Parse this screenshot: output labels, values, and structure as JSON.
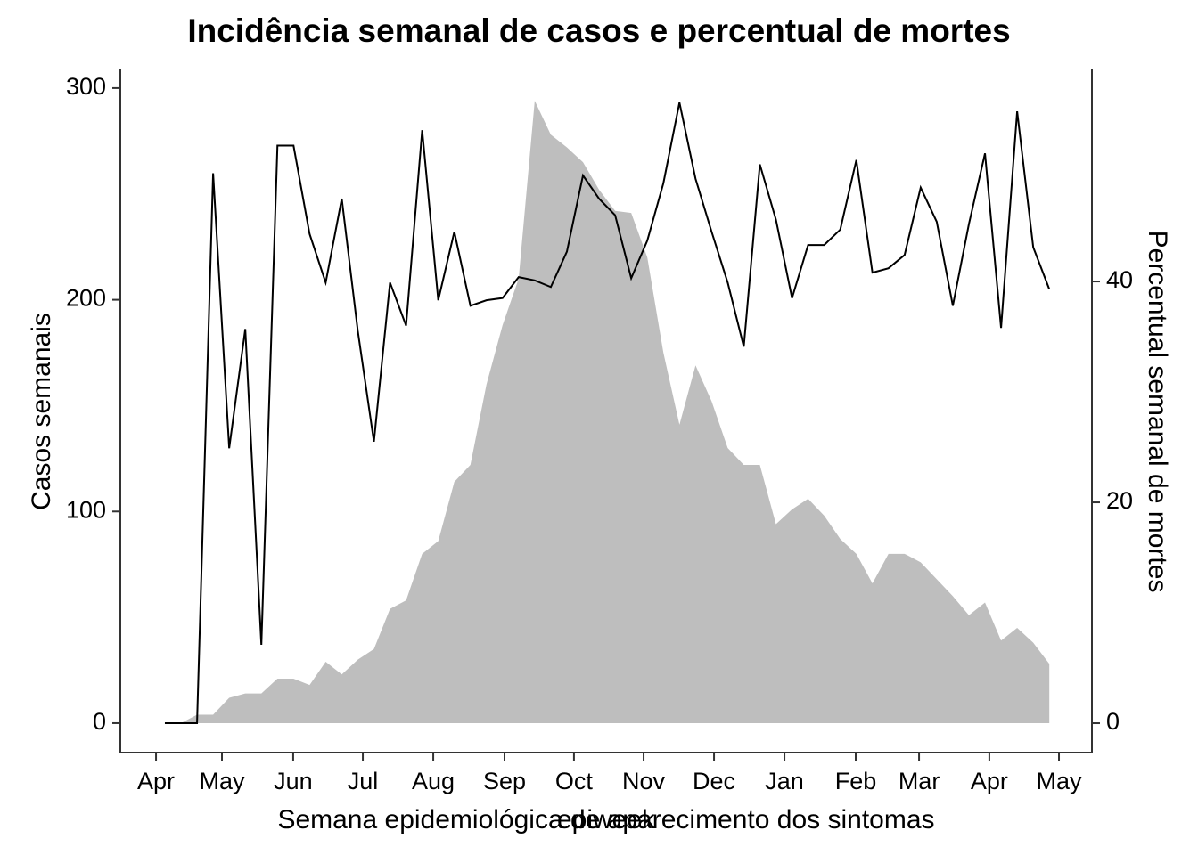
{
  "chart_data": {
    "type": "combo",
    "title": "Incidência semanal de casos e percentual de mortes",
    "xlabel": "Semana epidemiológica de aparecimento dos sintomas",
    "xlabel2": "epiweek",
    "ylabel": "Casos semanais",
    "y2label": "Percentual semanal de mortes",
    "x": [
      0,
      1,
      2,
      3,
      4,
      5,
      6,
      7,
      8,
      9,
      10,
      11,
      12,
      13,
      14,
      15,
      16,
      17,
      18,
      19,
      20,
      21,
      22,
      23,
      24,
      25,
      26,
      27,
      28,
      29,
      30,
      31,
      32,
      33,
      34,
      35,
      36,
      37,
      38,
      39,
      40,
      41,
      42,
      43,
      44,
      45,
      46,
      47,
      48,
      49,
      50,
      51,
      52,
      53,
      54,
      55
    ],
    "series": [
      {
        "type": "area",
        "color": "#bebebe",
        "values": [
          0,
          0,
          4,
          4,
          12,
          14,
          14,
          21,
          21,
          18,
          29,
          23,
          30,
          35,
          54,
          58,
          80,
          86,
          114,
          122,
          160,
          188,
          210,
          294,
          278,
          272,
          265,
          252,
          242,
          241,
          220,
          175,
          141,
          169,
          152,
          130,
          122,
          122,
          94,
          101,
          106,
          98,
          87,
          80,
          66,
          80,
          80,
          76,
          68,
          60,
          51,
          57,
          39,
          45,
          38,
          28
        ]
      },
      {
        "type": "line",
        "color": "#000000",
        "axis": "y2",
        "values": [
          0,
          0,
          0,
          49.8,
          24.9,
          35.7,
          7.1,
          52.3,
          52.3,
          44.3,
          39.9,
          47.5,
          35.5,
          25.5,
          39.9,
          36.0,
          53.7,
          38.3,
          44.5,
          37.8,
          38.3,
          38.5,
          40.4,
          40.1,
          39.5,
          42.7,
          49.6,
          47.5,
          46.0,
          40.3,
          43.7,
          48.9,
          56.2,
          49.3,
          44.5,
          39.9,
          34.1,
          50.6,
          45.6,
          38.5,
          43.3,
          43.3,
          44.7,
          51.0,
          40.8,
          41.2,
          42.4,
          48.5,
          45.4,
          37.8,
          45.2,
          51.6,
          35.8,
          55.4,
          43.1,
          39.3
        ]
      }
    ],
    "xlim": [
      -2.77,
      57.65
    ],
    "xticks": [
      {
        "value": -0.55,
        "label": "Apr"
      },
      {
        "value": 3.55,
        "label": "May"
      },
      {
        "value": 7.98,
        "label": "Jun"
      },
      {
        "value": 12.31,
        "label": "Jul"
      },
      {
        "value": 16.69,
        "label": "Aug"
      },
      {
        "value": 21.12,
        "label": "Sep"
      },
      {
        "value": 25.44,
        "label": "Oct"
      },
      {
        "value": 29.77,
        "label": "Nov"
      },
      {
        "value": 34.15,
        "label": "Dec"
      },
      {
        "value": 38.53,
        "label": "Jan"
      },
      {
        "value": 42.96,
        "label": "Feb"
      },
      {
        "value": 46.9,
        "label": "Mar"
      },
      {
        "value": 51.27,
        "label": "Apr"
      },
      {
        "value": 55.6,
        "label": "May"
      }
    ],
    "ylim": [
      -13.9,
      308.8
    ],
    "yticks": [
      0,
      100,
      200,
      300
    ],
    "y2lim": [
      -2.66,
      59.2
    ],
    "y2ticks": [
      0,
      20,
      40
    ]
  }
}
